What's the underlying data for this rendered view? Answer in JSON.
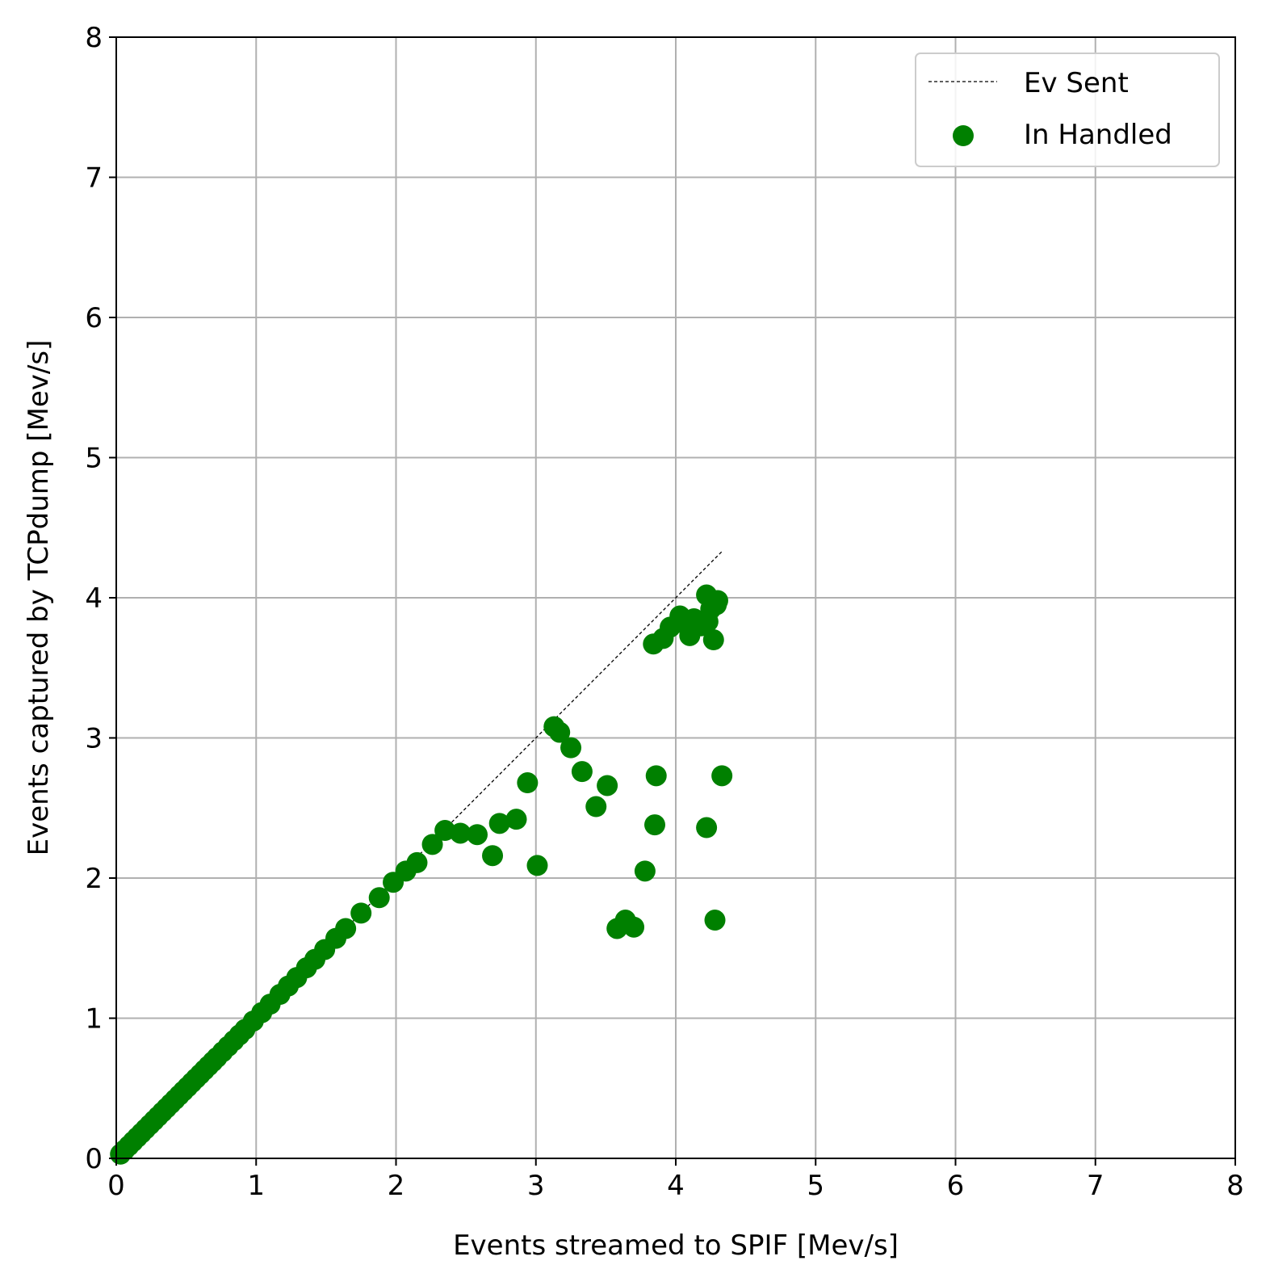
{
  "chart_data": {
    "type": "scatter",
    "xlabel": "Events streamed to SPIF [Mev/s]",
    "ylabel": "Events captured by TCPdump [Mev/s]",
    "xlim": [
      0,
      8
    ],
    "ylim": [
      0,
      8
    ],
    "xticks": [
      0,
      1,
      2,
      3,
      4,
      5,
      6,
      7,
      8
    ],
    "yticks": [
      0,
      1,
      2,
      3,
      4,
      5,
      6,
      7,
      8
    ],
    "grid": true,
    "legend_position": "top-right",
    "series": [
      {
        "name": "Ev Sent",
        "kind": "line",
        "style": "dashed",
        "color": "#000000",
        "x": [
          0,
          4.33
        ],
        "y": [
          0,
          4.33
        ]
      },
      {
        "name": "In Handled",
        "kind": "scatter",
        "color": "#008000",
        "x": [
          0.03,
          0.06,
          0.09,
          0.12,
          0.15,
          0.18,
          0.21,
          0.24,
          0.27,
          0.3,
          0.33,
          0.36,
          0.39,
          0.42,
          0.45,
          0.48,
          0.51,
          0.54,
          0.57,
          0.6,
          0.63,
          0.66,
          0.69,
          0.72,
          0.76,
          0.8,
          0.84,
          0.88,
          0.92,
          0.98,
          1.04,
          1.1,
          1.17,
          1.23,
          1.29,
          1.36,
          1.42,
          1.49,
          1.57,
          1.64,
          1.75,
          1.88,
          1.98,
          2.07,
          2.15,
          2.26,
          2.35,
          2.46,
          2.58,
          2.69,
          2.74,
          2.86,
          2.94,
          3.01,
          3.13,
          3.17,
          3.25,
          3.33,
          3.43,
          3.51,
          3.58,
          3.64,
          3.7,
          3.78,
          3.84,
          3.85,
          3.86,
          3.91,
          3.96,
          4.03,
          4.07,
          4.1,
          4.13,
          4.18,
          4.22,
          4.23,
          4.25,
          4.27,
          4.29,
          4.3,
          4.33,
          4.22,
          4.28
        ],
        "y": [
          0.03,
          0.06,
          0.09,
          0.12,
          0.15,
          0.18,
          0.21,
          0.24,
          0.27,
          0.3,
          0.33,
          0.36,
          0.39,
          0.42,
          0.45,
          0.48,
          0.51,
          0.54,
          0.57,
          0.6,
          0.63,
          0.66,
          0.69,
          0.72,
          0.76,
          0.8,
          0.84,
          0.88,
          0.92,
          0.98,
          1.04,
          1.1,
          1.17,
          1.23,
          1.29,
          1.36,
          1.42,
          1.49,
          1.57,
          1.64,
          1.75,
          1.86,
          1.97,
          2.05,
          2.11,
          2.24,
          2.34,
          2.32,
          2.31,
          2.16,
          2.39,
          2.42,
          2.68,
          2.09,
          3.08,
          3.04,
          2.93,
          2.76,
          2.51,
          2.66,
          1.64,
          1.7,
          1.65,
          2.05,
          3.67,
          2.38,
          2.73,
          3.71,
          3.79,
          3.87,
          3.81,
          3.73,
          3.85,
          3.8,
          4.02,
          3.83,
          3.92,
          3.7,
          3.95,
          3.98,
          2.73,
          2.36,
          1.7
        ]
      }
    ]
  }
}
